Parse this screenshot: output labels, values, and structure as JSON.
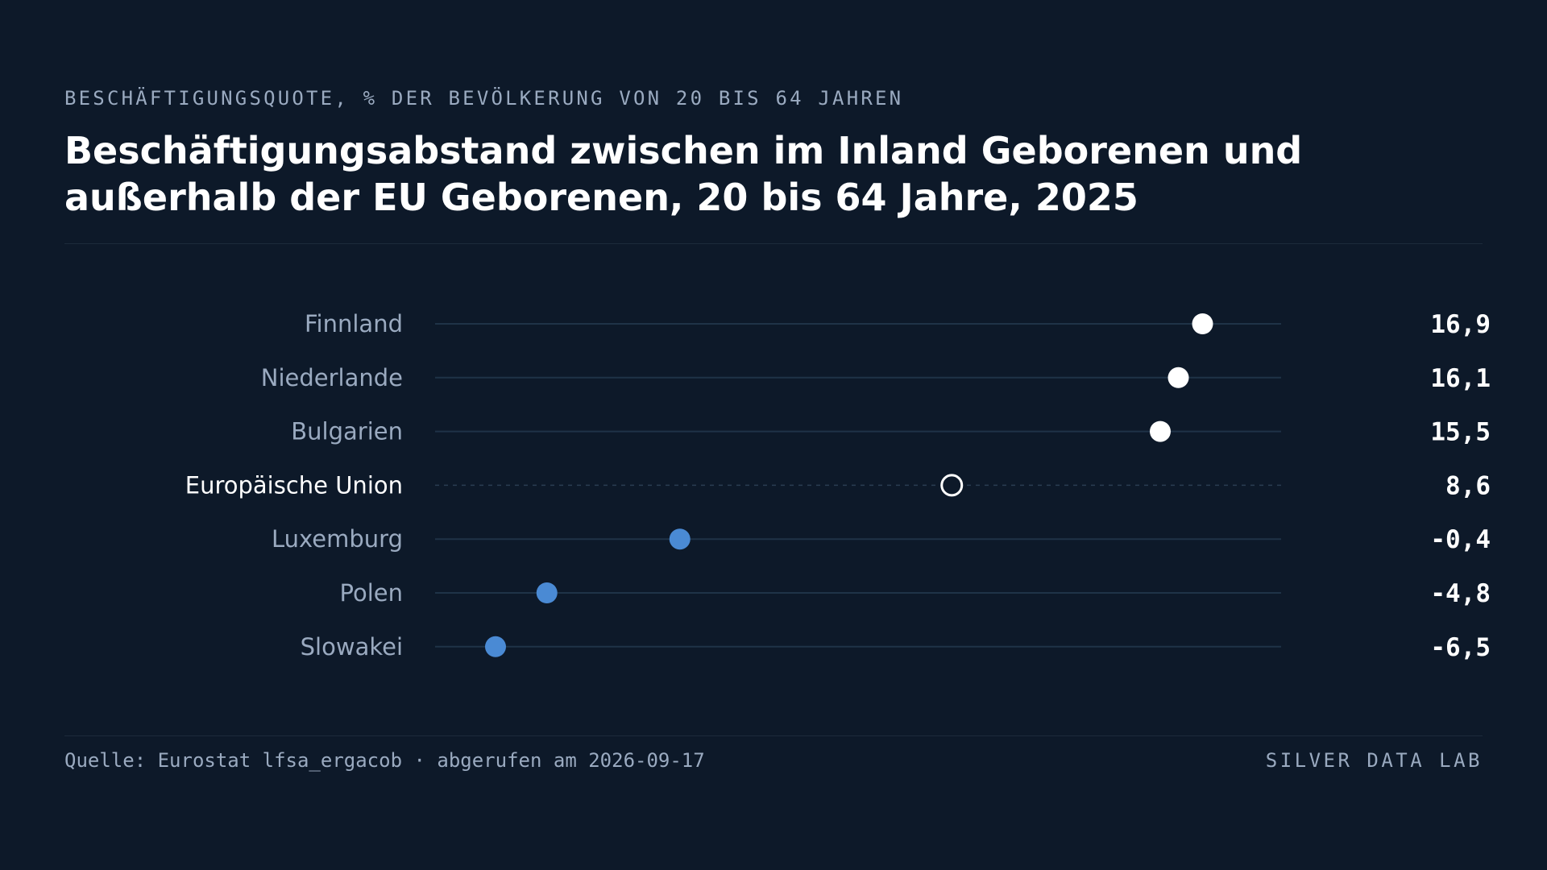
{
  "header": {
    "subtitle": "BESCHÄFTIGUNGSQUOTE, % DER BEVÖLKERUNG VON 20 BIS 64 JAHREN",
    "title": "Beschäftigungsabstand zwischen im Inland Geborenen und außerhalb der EU Geborenen, 20 bis 64 Jahre, 2025"
  },
  "footer": {
    "source": "Quelle: Eurostat lfsa_ergacob · abgerufen am 2026-09-17",
    "brand": "SILVER DATA LAB"
  },
  "colors": {
    "background": "#0d1929",
    "positive_dot": "#ffffff",
    "negative_dot": "#4a8ad4",
    "reference_dot_stroke": "#ffffff",
    "track_line": "#1f3347",
    "label_text": "#9aaac0",
    "highlight_label": "#ffffff"
  },
  "chart_data": {
    "type": "dot",
    "xlim": [
      -8.5,
      19.5
    ],
    "grid": false,
    "legend": "none",
    "categories": [
      "Finnland",
      "Niederlande",
      "Bulgarien",
      "Europäische Union",
      "Luxemburg",
      "Polen",
      "Slowakei"
    ],
    "values": [
      16.9,
      16.1,
      15.5,
      8.6,
      -0.4,
      -4.8,
      -6.5
    ],
    "value_labels": [
      "16,9",
      "16,1",
      "15,5",
      "8,6",
      "-0,4",
      "-4,8",
      "-6,5"
    ],
    "highlight": "Europäische Union"
  }
}
